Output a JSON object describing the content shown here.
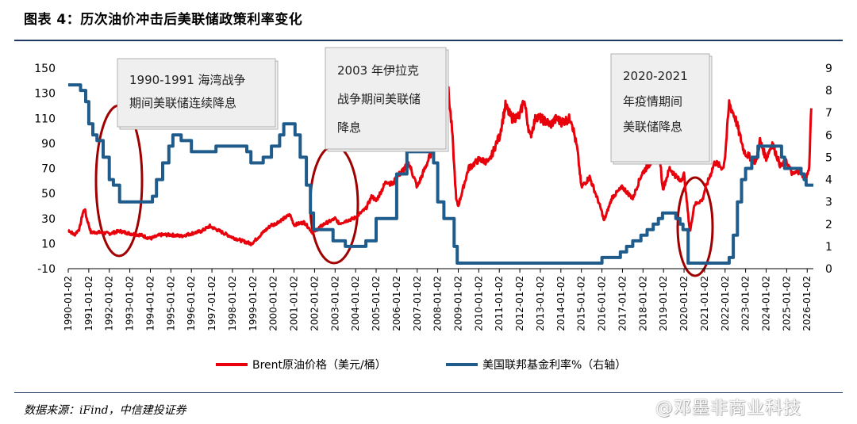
{
  "header": {
    "title": "图表 4：历次油价冲击后美联储政策利率变化"
  },
  "footer": {
    "source": "数据来源：iFind，中信建投证券",
    "watermark": "@邓墨非商业科技"
  },
  "chart_data": {
    "type": "line",
    "x_ticks": [
      "1990-01-02",
      "1991-01-02",
      "1992-01-02",
      "1993-01-02",
      "1994-01-02",
      "1995-01-02",
      "1996-01-02",
      "1997-01-02",
      "1998-01-02",
      "1999-01-02",
      "2000-01-02",
      "2001-01-02",
      "2002-01-02",
      "2003-01-02",
      "2004-01-02",
      "2005-01-02",
      "2006-01-02",
      "2007-01-02",
      "2008-01-02",
      "2009-01-02",
      "2010-01-02",
      "2011-01-02",
      "2012-01-02",
      "2013-01-02",
      "2014-01-02",
      "2015-01-02",
      "2016-01-02",
      "2017-01-02",
      "2018-01-02",
      "2019-01-02",
      "2020-01-02",
      "2021-01-02",
      "2022-01-02",
      "2023-01-02",
      "2024-01-02",
      "2025-01-02",
      "2026-01-02"
    ],
    "x_range": [
      1990.0,
      2026.3
    ],
    "y_left": {
      "range": [
        -10,
        150
      ],
      "ticks": [
        -10,
        10,
        30,
        50,
        70,
        90,
        110,
        130,
        150
      ]
    },
    "y_right": {
      "range": [
        0,
        9
      ],
      "ticks": [
        0,
        1,
        2,
        3,
        4,
        5,
        6,
        7,
        8,
        9
      ]
    },
    "series": [
      {
        "name": "Brent原油价格（美元/桶）",
        "axis": "left",
        "color": "#e8000b",
        "points": [
          [
            1990.0,
            21
          ],
          [
            1990.3,
            17
          ],
          [
            1990.55,
            22
          ],
          [
            1990.7,
            34
          ],
          [
            1990.8,
            38
          ],
          [
            1990.9,
            30
          ],
          [
            1991.0,
            25
          ],
          [
            1991.1,
            19
          ],
          [
            1991.5,
            19
          ],
          [
            1992.0,
            18
          ],
          [
            1992.5,
            20
          ],
          [
            1993.0,
            18
          ],
          [
            1993.5,
            17
          ],
          [
            1994.0,
            14
          ],
          [
            1994.5,
            17
          ],
          [
            1995.0,
            17
          ],
          [
            1995.5,
            16
          ],
          [
            1996.0,
            18
          ],
          [
            1996.5,
            20
          ],
          [
            1996.9,
            24
          ],
          [
            1997.0,
            23
          ],
          [
            1997.5,
            19
          ],
          [
            1998.0,
            15
          ],
          [
            1998.5,
            12
          ],
          [
            1998.9,
            10
          ],
          [
            1999.0,
            11
          ],
          [
            1999.5,
            19
          ],
          [
            1999.9,
            25
          ],
          [
            2000.0,
            25
          ],
          [
            2000.5,
            30
          ],
          [
            2000.8,
            33
          ],
          [
            2001.0,
            25
          ],
          [
            2001.5,
            27
          ],
          [
            2001.9,
            19
          ],
          [
            2002.0,
            20
          ],
          [
            2002.5,
            26
          ],
          [
            2002.9,
            29
          ],
          [
            2003.0,
            30
          ],
          [
            2003.2,
            26
          ],
          [
            2003.5,
            28
          ],
          [
            2003.9,
            30
          ],
          [
            2004.0,
            31
          ],
          [
            2004.5,
            38
          ],
          [
            2004.8,
            48
          ],
          [
            2005.0,
            44
          ],
          [
            2005.5,
            60
          ],
          [
            2005.8,
            57
          ],
          [
            2006.0,
            63
          ],
          [
            2006.6,
            74
          ],
          [
            2006.9,
            60
          ],
          [
            2007.0,
            55
          ],
          [
            2007.5,
            75
          ],
          [
            2007.9,
            92
          ],
          [
            2008.0,
            95
          ],
          [
            2008.5,
            135
          ],
          [
            2008.7,
            100
          ],
          [
            2008.9,
            45
          ],
          [
            2009.0,
            40
          ],
          [
            2009.5,
            70
          ],
          [
            2010.0,
            77
          ],
          [
            2010.5,
            75
          ],
          [
            2010.9,
            92
          ],
          [
            2011.0,
            95
          ],
          [
            2011.3,
            120
          ],
          [
            2011.6,
            110
          ],
          [
            2012.0,
            112
          ],
          [
            2012.2,
            125
          ],
          [
            2012.5,
            95
          ],
          [
            2012.8,
            112
          ],
          [
            2013.0,
            110
          ],
          [
            2013.5,
            105
          ],
          [
            2013.8,
            110
          ],
          [
            2014.0,
            107
          ],
          [
            2014.5,
            110
          ],
          [
            2014.8,
            85
          ],
          [
            2015.0,
            55
          ],
          [
            2015.4,
            63
          ],
          [
            2015.8,
            45
          ],
          [
            2016.0,
            35
          ],
          [
            2016.1,
            28
          ],
          [
            2016.5,
            47
          ],
          [
            2017.0,
            55
          ],
          [
            2017.5,
            46
          ],
          [
            2017.9,
            64
          ],
          [
            2018.0,
            67
          ],
          [
            2018.8,
            84
          ],
          [
            2018.95,
            55
          ],
          [
            2019.0,
            55
          ],
          [
            2019.3,
            70
          ],
          [
            2019.8,
            60
          ],
          [
            2020.0,
            65
          ],
          [
            2020.25,
            25
          ],
          [
            2020.3,
            20
          ],
          [
            2020.5,
            41
          ],
          [
            2020.9,
            45
          ],
          [
            2021.0,
            52
          ],
          [
            2021.5,
            75
          ],
          [
            2021.9,
            70
          ],
          [
            2022.0,
            80
          ],
          [
            2022.2,
            122
          ],
          [
            2022.5,
            110
          ],
          [
            2022.9,
            85
          ],
          [
            2023.0,
            82
          ],
          [
            2023.5,
            75
          ],
          [
            2023.7,
            92
          ],
          [
            2024.0,
            78
          ],
          [
            2024.3,
            90
          ],
          [
            2024.7,
            72
          ],
          [
            2025.0,
            75
          ],
          [
            2025.3,
            65
          ],
          [
            2025.6,
            68
          ],
          [
            2025.9,
            62
          ],
          [
            2026.0,
            65
          ],
          [
            2026.1,
            70
          ],
          [
            2026.15,
            100
          ],
          [
            2026.2,
            118
          ]
        ]
      },
      {
        "name": "美国联邦基金利率%（右轴）",
        "axis": "right",
        "color": "#1f5c8b",
        "points": [
          [
            1990.0,
            8.25
          ],
          [
            1990.5,
            8.25
          ],
          [
            1990.6,
            8.0
          ],
          [
            1990.85,
            7.5
          ],
          [
            1991.0,
            6.5
          ],
          [
            1991.2,
            6.0
          ],
          [
            1991.4,
            5.75
          ],
          [
            1991.7,
            5.0
          ],
          [
            1992.0,
            4.0
          ],
          [
            1992.2,
            3.75
          ],
          [
            1992.5,
            3.0
          ],
          [
            1993.0,
            3.0
          ],
          [
            1994.0,
            3.0
          ],
          [
            1994.1,
            3.25
          ],
          [
            1994.3,
            4.0
          ],
          [
            1994.6,
            4.75
          ],
          [
            1994.9,
            5.5
          ],
          [
            1995.1,
            6.0
          ],
          [
            1995.5,
            5.75
          ],
          [
            1996.0,
            5.25
          ],
          [
            1997.2,
            5.5
          ],
          [
            1998.7,
            5.25
          ],
          [
            1998.9,
            4.75
          ],
          [
            1999.5,
            5.0
          ],
          [
            1999.9,
            5.5
          ],
          [
            2000.3,
            6.0
          ],
          [
            2000.5,
            6.5
          ],
          [
            2001.0,
            6.5
          ],
          [
            2001.05,
            6.0
          ],
          [
            2001.3,
            5.0
          ],
          [
            2001.6,
            3.75
          ],
          [
            2001.8,
            2.5
          ],
          [
            2001.95,
            1.75
          ],
          [
            2002.9,
            1.25
          ],
          [
            2003.5,
            1.0
          ],
          [
            2004.4,
            1.0
          ],
          [
            2004.5,
            1.25
          ],
          [
            2005.0,
            2.25
          ],
          [
            2006.0,
            4.25
          ],
          [
            2006.5,
            5.25
          ],
          [
            2007.6,
            5.25
          ],
          [
            2007.8,
            4.75
          ],
          [
            2008.0,
            3.0
          ],
          [
            2008.3,
            2.25
          ],
          [
            2008.8,
            1.0
          ],
          [
            2008.95,
            0.25
          ],
          [
            2015.9,
            0.25
          ],
          [
            2016.0,
            0.5
          ],
          [
            2016.9,
            0.75
          ],
          [
            2017.2,
            1.0
          ],
          [
            2017.5,
            1.25
          ],
          [
            2017.9,
            1.5
          ],
          [
            2018.2,
            1.75
          ],
          [
            2018.5,
            2.0
          ],
          [
            2018.75,
            2.25
          ],
          [
            2018.95,
            2.5
          ],
          [
            2019.5,
            2.5
          ],
          [
            2019.6,
            2.25
          ],
          [
            2019.8,
            2.0
          ],
          [
            2019.95,
            1.75
          ],
          [
            2020.15,
            1.75
          ],
          [
            2020.2,
            0.25
          ],
          [
            2022.1,
            0.25
          ],
          [
            2022.2,
            0.5
          ],
          [
            2022.4,
            1.5
          ],
          [
            2022.6,
            3.0
          ],
          [
            2022.8,
            4.0
          ],
          [
            2023.0,
            4.5
          ],
          [
            2023.3,
            5.0
          ],
          [
            2023.6,
            5.5
          ],
          [
            2024.7,
            5.5
          ],
          [
            2024.75,
            5.0
          ],
          [
            2024.9,
            4.5
          ],
          [
            2025.7,
            4.25
          ],
          [
            2025.85,
            4.0
          ],
          [
            2025.95,
            3.75
          ],
          [
            2026.3,
            3.75
          ]
        ]
      }
    ],
    "annotations": [
      {
        "text_lines": [
          "1990-1991  海湾战争",
          "期间美联储连续降息"
        ]
      },
      {
        "text_lines": [
          "2003  年伊拉克",
          "战争期间美联储",
          "降息"
        ]
      },
      {
        "text_lines": [
          "2020-2021",
          "年疫情期间",
          "美联储降息"
        ]
      }
    ],
    "grid": false,
    "legend_position": "bottom"
  }
}
